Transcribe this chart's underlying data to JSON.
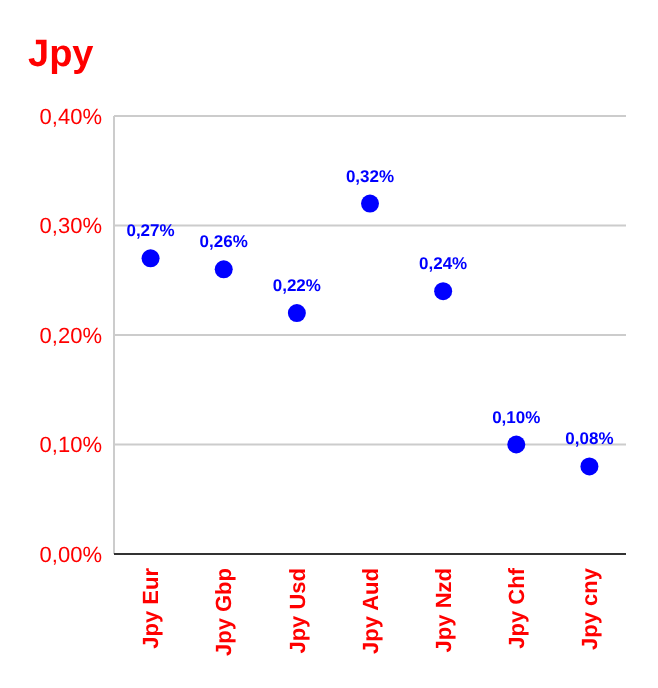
{
  "chart_data": {
    "type": "scatter",
    "title": "Jpy",
    "categories": [
      "Jpy Eur",
      "Jpy Gbp",
      "Jpy Usd",
      "Jpy Aud",
      "Jpy Nzd",
      "Jpy Chf",
      "Jpy cny"
    ],
    "series": [
      {
        "color": "#0000ff",
        "values": [
          0.27,
          0.26,
          0.22,
          0.32,
          0.24,
          0.1,
          0.08
        ],
        "value_labels": [
          "0,27%",
          "0,26%",
          "0,22%",
          "0,32%",
          "0,24%",
          "0,10%",
          "0,08%"
        ]
      }
    ],
    "ylim": [
      0,
      0.4
    ],
    "yticks": [
      {
        "value": 0,
        "label": "0,00%"
      },
      {
        "value": 0.1,
        "label": "0,10%"
      },
      {
        "value": 0.2,
        "label": "0,20%"
      },
      {
        "value": 0.3,
        "label": "0,30%"
      },
      {
        "value": 0.4,
        "label": "0,40%"
      }
    ],
    "grid": "y",
    "marker": "circle"
  }
}
